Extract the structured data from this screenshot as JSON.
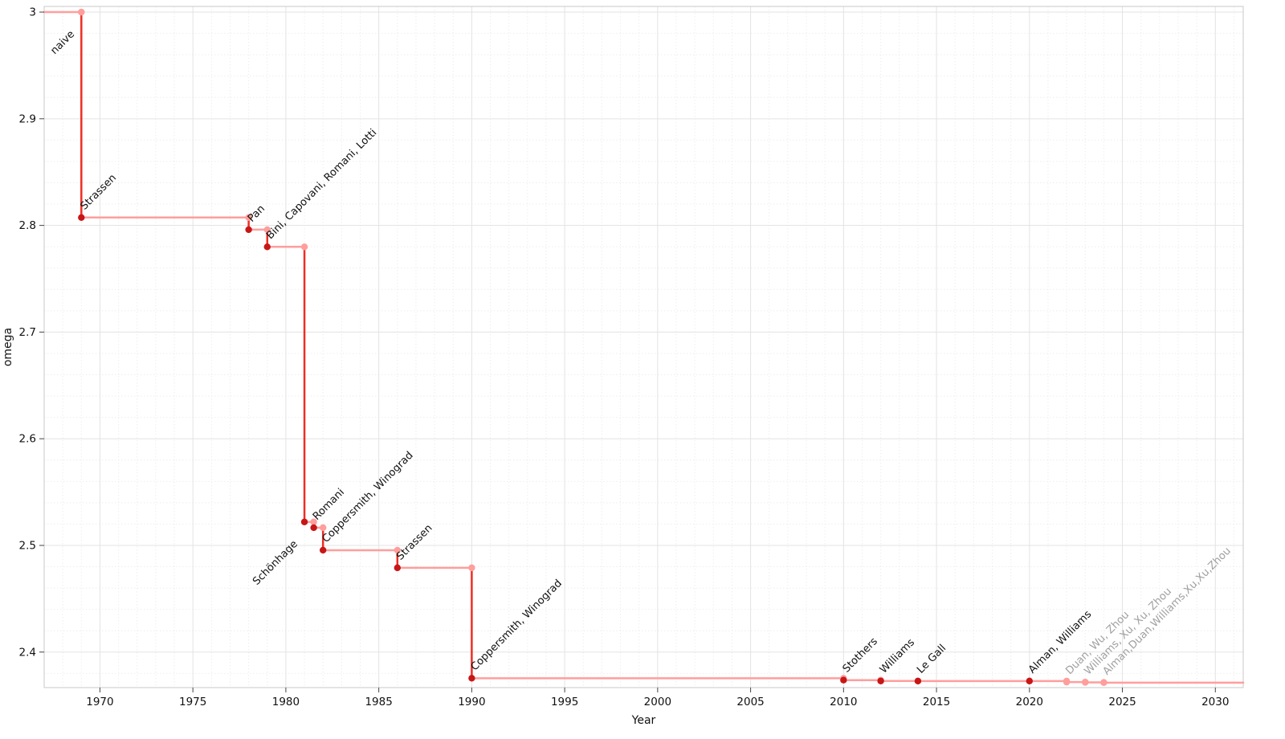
{
  "page": {
    "background": "#ffffff"
  },
  "chart_data": {
    "type": "line",
    "subtype": "step",
    "title": "",
    "xlabel": "Year",
    "ylabel": "omega",
    "legend": "none",
    "grid": true,
    "xlim": [
      1967,
      2031.5
    ],
    "ylim": [
      2.3667,
      3.0053
    ],
    "xticks": [
      {
        "v": 1970,
        "label": "1970"
      },
      {
        "v": 1975,
        "label": "1975"
      },
      {
        "v": 1980,
        "label": "1980"
      },
      {
        "v": 1985,
        "label": "1985"
      },
      {
        "v": 1990,
        "label": "1990"
      },
      {
        "v": 1995,
        "label": "1995"
      },
      {
        "v": 2000,
        "label": "2000"
      },
      {
        "v": 2005,
        "label": "2005"
      },
      {
        "v": 2010,
        "label": "2010"
      },
      {
        "v": 2015,
        "label": "2015"
      },
      {
        "v": 2020,
        "label": "2020"
      },
      {
        "v": 2025,
        "label": "2025"
      },
      {
        "v": 2030,
        "label": "2030"
      }
    ],
    "yticks": [
      {
        "v": 3.0,
        "label": "3"
      },
      {
        "v": 2.9,
        "label": "2.9"
      },
      {
        "v": 2.8,
        "label": "2.8"
      },
      {
        "v": 2.7,
        "label": "2.7"
      },
      {
        "v": 2.6,
        "label": "2.6"
      },
      {
        "v": 2.5,
        "label": "2.5"
      },
      {
        "v": 2.4,
        "label": "2.4"
      }
    ],
    "minor_x_step": 1,
    "minor_y_step": 0.02,
    "points": [
      {
        "year": 1969,
        "omega": 3.0,
        "label": "naive",
        "dot": "corner",
        "label_color": "dark",
        "label_side": "below"
      },
      {
        "year": 1969,
        "omega": 2.8074,
        "label": "Strassen",
        "dot": "new",
        "label_color": "dark",
        "label_side": "above"
      },
      {
        "year": 1978,
        "omega": 2.796,
        "label": "Pan",
        "dot": "new",
        "label_color": "dark",
        "label_side": "above"
      },
      {
        "year": 1979,
        "omega": 2.7799,
        "label": "Bini, Capovani, Romani, Lotti",
        "dot": "new",
        "label_color": "dark",
        "label_side": "above"
      },
      {
        "year": 1981,
        "omega": 2.522,
        "label": "Schönhage",
        "dot": "new",
        "label_color": "dark",
        "label_side": "below"
      },
      {
        "year": 1981.5,
        "omega": 2.5166,
        "label": "Romani",
        "dot": "new",
        "label_color": "dark",
        "label_side": "above"
      },
      {
        "year": 1982,
        "omega": 2.4955,
        "label": "Coppersmith, Winograd",
        "dot": "new",
        "label_color": "dark",
        "label_side": "above"
      },
      {
        "year": 1986,
        "omega": 2.479,
        "label": "Strassen",
        "dot": "new",
        "label_color": "dark",
        "label_side": "above"
      },
      {
        "year": 1990,
        "omega": 2.3755,
        "label": "Coppersmith, Winograd",
        "dot": "new",
        "label_color": "dark",
        "label_side": "above"
      },
      {
        "year": 2010,
        "omega": 2.3737,
        "label": "Stothers",
        "dot": "new",
        "label_color": "dark",
        "label_side": "above"
      },
      {
        "year": 2012,
        "omega": 2.3729,
        "label": "Williams",
        "dot": "new",
        "label_color": "dark",
        "label_side": "above"
      },
      {
        "year": 2014,
        "omega": 2.3728639,
        "label": "Le Gall",
        "dot": "new",
        "label_color": "dark",
        "label_side": "above"
      },
      {
        "year": 2020,
        "omega": 2.3728596,
        "label": "Alman, Williams",
        "dot": "new",
        "label_color": "dark",
        "label_side": "above"
      },
      {
        "year": 2022,
        "omega": 2.371866,
        "label": "Duan, Wu, Zhou",
        "dot": "corner",
        "label_color": "gray",
        "label_side": "above"
      },
      {
        "year": 2023,
        "omega": 2.371552,
        "label": "Williams, Xu, Xu, Zhou",
        "dot": "corner",
        "label_color": "gray",
        "label_side": "above"
      },
      {
        "year": 2024,
        "omega": 2.371339,
        "label": "Alman,Duan,Williams,Xu,Xu,Zhou",
        "dot": "corner",
        "label_color": "gray",
        "label_side": "above"
      }
    ],
    "colors": {
      "step_horizontal": "#ff9e9c",
      "step_vertical": "#ee2e24",
      "dot_new": "#c81616",
      "dot_corner": "#ff9e9c",
      "label_dark": "#111111",
      "label_gray": "#a0a0a0",
      "grid_major": "#e3e3e3",
      "grid_minor": "#eeeeee",
      "border": "#c9c9c9",
      "tick": "#444444",
      "tick_label": "#111111",
      "axis_label": "#111111"
    }
  }
}
